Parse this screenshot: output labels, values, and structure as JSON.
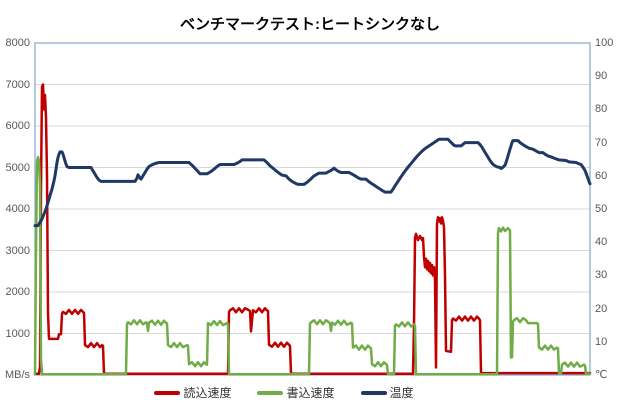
{
  "chart_data": {
    "type": "line",
    "title": "ベンチマークテスト:ヒートシンクなし",
    "x_axis": {
      "tick_labels_visible": false,
      "range": [
        0,
        555
      ]
    },
    "y_left": {
      "unit_label": "MB/s",
      "range": [
        0,
        8000
      ],
      "ticks": [
        "8000",
        "7000",
        "6000",
        "5000",
        "4000",
        "3000",
        "2000",
        "1000",
        "MB/s"
      ]
    },
    "y_right": {
      "unit_label": "℃",
      "range": [
        0,
        100
      ],
      "ticks": [
        "100",
        "90",
        "80",
        "70",
        "60",
        "50",
        "40",
        "30",
        "20",
        "10",
        "℃"
      ]
    },
    "grid": {
      "horizontal": true,
      "color": "#D9D9D9"
    },
    "plot_border_color": "#84A7C7",
    "tick_text_color": "#595959",
    "legend": {
      "position": "bottom"
    },
    "series": [
      {
        "name": "読込速度",
        "key": "read-speed",
        "color": "#C00000",
        "axis": "left",
        "points": [
          [
            0,
            30
          ],
          [
            4,
            30
          ],
          [
            5,
            200
          ],
          [
            6,
            4500
          ],
          [
            7,
            6950
          ],
          [
            8,
            7000
          ],
          [
            9,
            6400
          ],
          [
            10,
            6750
          ],
          [
            11,
            6200
          ],
          [
            12,
            4800
          ],
          [
            13,
            1500
          ],
          [
            14,
            870
          ],
          [
            23,
            870
          ],
          [
            24,
            980
          ],
          [
            26,
            980
          ],
          [
            27,
            1480
          ],
          [
            28,
            1520
          ],
          [
            48,
            1520
          ],
          [
            49,
            1500
          ],
          [
            50,
            720
          ],
          [
            67,
            720
          ],
          [
            68,
            700
          ],
          [
            69,
            30
          ],
          [
            193,
            30
          ],
          [
            194,
            1520
          ],
          [
            195,
            1560
          ],
          [
            214,
            1560
          ],
          [
            215,
            1540
          ],
          [
            216,
            1050
          ],
          [
            218,
            1560
          ],
          [
            232,
            1560
          ],
          [
            233,
            1540
          ],
          [
            234,
            730
          ],
          [
            254,
            730
          ],
          [
            255,
            700
          ],
          [
            256,
            30
          ],
          [
            378,
            30
          ],
          [
            379,
            1200
          ],
          [
            380,
            3300
          ],
          [
            381,
            3400
          ],
          [
            383,
            3250
          ],
          [
            385,
            3350
          ],
          [
            387,
            3250
          ],
          [
            388,
            3300
          ],
          [
            389,
            2850
          ],
          [
            390,
            2600
          ],
          [
            391,
            2800
          ],
          [
            392,
            2550
          ],
          [
            393,
            2750
          ],
          [
            394,
            2500
          ],
          [
            395,
            2700
          ],
          [
            396,
            2450
          ],
          [
            397,
            2650
          ],
          [
            398,
            2400
          ],
          [
            399,
            2600
          ],
          [
            400,
            2300
          ],
          [
            401,
            180
          ],
          [
            402,
            3650
          ],
          [
            403,
            3800
          ],
          [
            404,
            3700
          ],
          [
            405,
            3780
          ],
          [
            406,
            3650
          ],
          [
            407,
            3800
          ],
          [
            408,
            3720
          ],
          [
            409,
            3550
          ],
          [
            410,
            2400
          ],
          [
            411,
            580
          ],
          [
            416,
            560
          ],
          [
            417,
            1320
          ],
          [
            418,
            1360
          ],
          [
            444,
            1360
          ],
          [
            445,
            1320
          ],
          [
            446,
            45
          ],
          [
            555,
            45
          ]
        ]
      },
      {
        "name": "書込速度",
        "key": "write-speed",
        "color": "#70AD47",
        "axis": "left",
        "points": [
          [
            0,
            20
          ],
          [
            1,
            3000
          ],
          [
            2,
            5150
          ],
          [
            3,
            5250
          ],
          [
            4,
            5150
          ],
          [
            5,
            4600
          ],
          [
            6,
            400
          ],
          [
            7,
            20
          ],
          [
            91,
            20
          ],
          [
            92,
            1230
          ],
          [
            93,
            1270
          ],
          [
            111,
            1270
          ],
          [
            112,
            1240
          ],
          [
            113,
            1060
          ],
          [
            114,
            1260
          ],
          [
            131,
            1260
          ],
          [
            132,
            1240
          ],
          [
            133,
            720
          ],
          [
            152,
            720
          ],
          [
            153,
            700
          ],
          [
            154,
            260
          ],
          [
            171,
            260
          ],
          [
            172,
            250
          ],
          [
            173,
            1250
          ],
          [
            192,
            1250
          ],
          [
            193,
            1230
          ],
          [
            194,
            20
          ],
          [
            274,
            20
          ],
          [
            275,
            1240
          ],
          [
            276,
            1270
          ],
          [
            294,
            1270
          ],
          [
            295,
            1240
          ],
          [
            296,
            1060
          ],
          [
            297,
            1260
          ],
          [
            316,
            1260
          ],
          [
            317,
            1240
          ],
          [
            318,
            660
          ],
          [
            335,
            660
          ],
          [
            336,
            640
          ],
          [
            337,
            260
          ],
          [
            351,
            260
          ],
          [
            352,
            240
          ],
          [
            353,
            20
          ],
          [
            359,
            20
          ],
          [
            360,
            1190
          ],
          [
            361,
            1220
          ],
          [
            379,
            1220
          ],
          [
            380,
            1190
          ],
          [
            381,
            20
          ],
          [
            462,
            20
          ],
          [
            463,
            3420
          ],
          [
            464,
            3540
          ],
          [
            466,
            3460
          ],
          [
            468,
            3550
          ],
          [
            470,
            3470
          ],
          [
            473,
            3540
          ],
          [
            475,
            3480
          ],
          [
            476,
            420
          ],
          [
            477,
            430
          ],
          [
            478,
            1290
          ],
          [
            479,
            1320
          ],
          [
            491,
            1320
          ],
          [
            492,
            1290
          ],
          [
            493,
            1250
          ],
          [
            502,
            1250
          ],
          [
            503,
            1230
          ],
          [
            504,
            660
          ],
          [
            522,
            660
          ],
          [
            523,
            640
          ],
          [
            524,
            35
          ],
          [
            526,
            35
          ],
          [
            527,
            250
          ],
          [
            549,
            250
          ],
          [
            550,
            230
          ],
          [
            551,
            30
          ],
          [
            555,
            30
          ]
        ]
      },
      {
        "name": "温度",
        "key": "temperature",
        "color": "#1F3864",
        "axis": "right",
        "points": [
          [
            0,
            45
          ],
          [
            3,
            45
          ],
          [
            5,
            46
          ],
          [
            7,
            47
          ],
          [
            9,
            48.5
          ],
          [
            11,
            50
          ],
          [
            13,
            52
          ],
          [
            15,
            54
          ],
          [
            17,
            56
          ],
          [
            19,
            58.5
          ],
          [
            20,
            60
          ],
          [
            21,
            62
          ],
          [
            22,
            64
          ],
          [
            23,
            65.5
          ],
          [
            24,
            66.5
          ],
          [
            25,
            67.2
          ],
          [
            27,
            67.2
          ],
          [
            28,
            66.5
          ],
          [
            29,
            65.5
          ],
          [
            30,
            64.5
          ],
          [
            31,
            63.5
          ],
          [
            32,
            62.8
          ],
          [
            34,
            62.5
          ],
          [
            56,
            62.5
          ],
          [
            58,
            61.5
          ],
          [
            60,
            60.5
          ],
          [
            62,
            59.5
          ],
          [
            64,
            58.7
          ],
          [
            66,
            58.3
          ],
          [
            100,
            58.3
          ],
          [
            102,
            59.3
          ],
          [
            103,
            60.3
          ],
          [
            105,
            59.3
          ],
          [
            106,
            59
          ],
          [
            108,
            60
          ],
          [
            110,
            61
          ],
          [
            112,
            62
          ],
          [
            114,
            62.8
          ],
          [
            117,
            63.3
          ],
          [
            121,
            63.8
          ],
          [
            124,
            64
          ],
          [
            154,
            64
          ],
          [
            157,
            63.2
          ],
          [
            160,
            62.3
          ],
          [
            163,
            61.3
          ],
          [
            165,
            60.6
          ],
          [
            172,
            60.6
          ],
          [
            176,
            61.3
          ],
          [
            179,
            62
          ],
          [
            182,
            62.8
          ],
          [
            185,
            63.4
          ],
          [
            199,
            63.4
          ],
          [
            202,
            63.8
          ],
          [
            205,
            64.3
          ],
          [
            207,
            64.8
          ],
          [
            229,
            64.8
          ],
          [
            232,
            64
          ],
          [
            235,
            63
          ],
          [
            238,
            62.3
          ],
          [
            241,
            61.5
          ],
          [
            244,
            60.8
          ],
          [
            247,
            60.2
          ],
          [
            251,
            60
          ],
          [
            254,
            59
          ],
          [
            257,
            58.3
          ],
          [
            260,
            57.8
          ],
          [
            263,
            57.4
          ],
          [
            269,
            57.4
          ],
          [
            272,
            58
          ],
          [
            275,
            58.8
          ],
          [
            278,
            59.7
          ],
          [
            281,
            60.3
          ],
          [
            284,
            60.8
          ],
          [
            291,
            60.8
          ],
          [
            294,
            61.3
          ],
          [
            297,
            61.8
          ],
          [
            299,
            62.3
          ],
          [
            301,
            61.8
          ],
          [
            303,
            61.4
          ],
          [
            306,
            61
          ],
          [
            314,
            61
          ],
          [
            317,
            60.5
          ],
          [
            320,
            60
          ],
          [
            323,
            59.4
          ],
          [
            326,
            59
          ],
          [
            331,
            59
          ],
          [
            334,
            58.2
          ],
          [
            337,
            57.6
          ],
          [
            340,
            57
          ],
          [
            344,
            56.2
          ],
          [
            347,
            55.6
          ],
          [
            350,
            55.1
          ],
          [
            356,
            55.1
          ],
          [
            358,
            56
          ],
          [
            360,
            57
          ],
          [
            363,
            58.3
          ],
          [
            366,
            59.7
          ],
          [
            369,
            61
          ],
          [
            372,
            62.2
          ],
          [
            375,
            63.3
          ],
          [
            378,
            64.4
          ],
          [
            381,
            65.5
          ],
          [
            384,
            66.5
          ],
          [
            387,
            67.4
          ],
          [
            390,
            68.2
          ],
          [
            393,
            68.8
          ],
          [
            396,
            69.4
          ],
          [
            399,
            70
          ],
          [
            402,
            70.6
          ],
          [
            404,
            71
          ],
          [
            413,
            71
          ],
          [
            415,
            70.4
          ],
          [
            417,
            69.8
          ],
          [
            419,
            69.2
          ],
          [
            421,
            69
          ],
          [
            426,
            69
          ],
          [
            428,
            69.5
          ],
          [
            430,
            70
          ],
          [
            443,
            70
          ],
          [
            445,
            69.4
          ],
          [
            447,
            68.6
          ],
          [
            449,
            67.6
          ],
          [
            451,
            66.6
          ],
          [
            453,
            65.6
          ],
          [
            455,
            64.6
          ],
          [
            457,
            63.8
          ],
          [
            459,
            63.2
          ],
          [
            462,
            62.7
          ],
          [
            465,
            62.5
          ],
          [
            466,
            62.2
          ],
          [
            468,
            62.6
          ],
          [
            470,
            63.2
          ],
          [
            471,
            64
          ],
          [
            472,
            65
          ],
          [
            473,
            66
          ],
          [
            474,
            67
          ],
          [
            475,
            68
          ],
          [
            476,
            69
          ],
          [
            477,
            70
          ],
          [
            478,
            70.6
          ],
          [
            483,
            70.6
          ],
          [
            485,
            70
          ],
          [
            488,
            69.4
          ],
          [
            491,
            68.8
          ],
          [
            494,
            68.3
          ],
          [
            498,
            68
          ],
          [
            501,
            67.5
          ],
          [
            504,
            67
          ],
          [
            508,
            67
          ],
          [
            510,
            66.5
          ],
          [
            513,
            66
          ],
          [
            517,
            65.6
          ],
          [
            520,
            65.2
          ],
          [
            524,
            64.8
          ],
          [
            531,
            64.6
          ],
          [
            534,
            64.2
          ],
          [
            541,
            64
          ],
          [
            544,
            63.6
          ],
          [
            546,
            63.4
          ],
          [
            548,
            62.6
          ],
          [
            550,
            61.6
          ],
          [
            551,
            60.8
          ],
          [
            552,
            60
          ],
          [
            553,
            59.2
          ],
          [
            554,
            58.3
          ],
          [
            555,
            57.6
          ]
        ]
      }
    ]
  }
}
